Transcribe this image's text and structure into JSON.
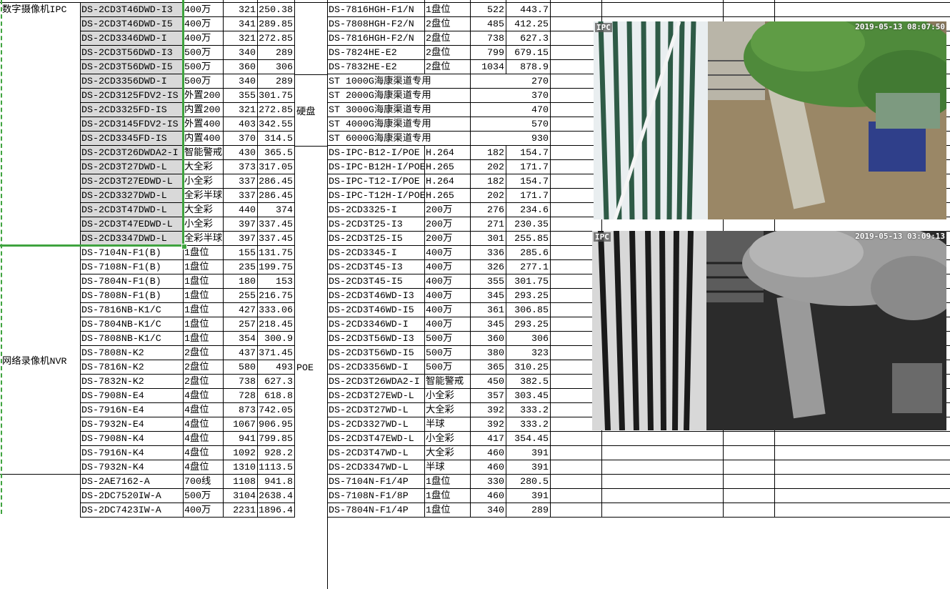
{
  "sheet": {
    "group_ipc": "数字摄像机IPC",
    "group_nvr": "网络录像机NVR",
    "group_hdd": "硬盘",
    "group_poe": "POE",
    "left_rows": [
      [
        "DS-2CD3T46DWD-I3",
        "400万",
        "321",
        "250.38"
      ],
      [
        "DS-2CD3T46DWD-I5",
        "400万",
        "341",
        "289.85"
      ],
      [
        "DS-2CD3346DWD-I",
        "400万",
        "321",
        "272.85"
      ],
      [
        "DS-2CD3T56DWD-I3",
        "500万",
        "340",
        "289"
      ],
      [
        "DS-2CD3T56DWD-I5",
        "500万",
        "360",
        "306"
      ],
      [
        "DS-2CD3356DWD-I",
        "500万",
        "340",
        "289"
      ],
      [
        "DS-2CD3125FDV2-IS",
        "外置200",
        "355",
        "301.75"
      ],
      [
        "DS-2CD3325FD-IS",
        "内置200",
        "321",
        "272.85"
      ],
      [
        "DS-2CD3145FDV2-IS",
        "外置400",
        "403",
        "342.55"
      ],
      [
        "DS-2CD3345FD-IS",
        "内置400",
        "370",
        "314.5"
      ],
      [
        "DS-2CD3T26DWDA2-I",
        "智能警戒",
        "430",
        "365.5"
      ],
      [
        "DS-2CD3T27DWD-L",
        "大全彩",
        "373",
        "317.05"
      ],
      [
        "DS-2CD3T27EDWD-L",
        "小全彩",
        "337",
        "286.45"
      ],
      [
        "DS-2CD3327DWD-L",
        "全彩半球",
        "337",
        "286.45"
      ],
      [
        "DS-2CD3T47DWD-L",
        "大全彩",
        "440",
        "374"
      ],
      [
        "DS-2CD3T47EDWD-L",
        "小全彩",
        "397",
        "337.45"
      ],
      [
        "DS-2CD3347DWD-L",
        "全彩半球",
        "397",
        "337.45"
      ],
      [
        "DS-7104N-F1(B)",
        "1盘位",
        "155",
        "131.75"
      ],
      [
        "DS-7108N-F1(B)",
        "1盘位",
        "235",
        "199.75"
      ],
      [
        "DS-7804N-F1(B)",
        "1盘位",
        "180",
        "153"
      ],
      [
        "DS-7808N-F1(B)",
        "1盘位",
        "255",
        "216.75"
      ],
      [
        "DS-7816NB-K1/C",
        "1盘位",
        "427",
        "333.06"
      ],
      [
        "DS-7804NB-K1/C",
        "1盘位",
        "257",
        "218.45"
      ],
      [
        "DS-7808NB-K1/C",
        "1盘位",
        "354",
        "300.9"
      ],
      [
        "DS-7808N-K2",
        "2盘位",
        "437",
        "371.45"
      ],
      [
        "DS-7816N-K2",
        "2盘位",
        "580",
        "493"
      ],
      [
        "DS-7832N-K2",
        "2盘位",
        "738",
        "627.3"
      ],
      [
        "DS-7908N-E4",
        "4盘位",
        "728",
        "618.8"
      ],
      [
        "DS-7916N-E4",
        "4盘位",
        "873",
        "742.05"
      ],
      [
        "DS-7932N-E4",
        "4盘位",
        "1067",
        "906.95"
      ],
      [
        "DS-7908N-K4",
        "4盘位",
        "941",
        "799.85"
      ],
      [
        "DS-7916N-K4",
        "4盘位",
        "1092",
        "928.2"
      ],
      [
        "DS-7932N-K4",
        "4盘位",
        "1310",
        "1113.5"
      ],
      [
        "DS-2AE7162-A",
        "700线",
        "1108",
        "941.8"
      ],
      [
        "DS-2DC7520IW-A",
        "500万",
        "3104",
        "2638.4"
      ],
      [
        "DS-2DC7423IW-A",
        "400万",
        "2231",
        "1896.4"
      ]
    ],
    "right_rows": [
      [
        "DS-7816HGH-F1/N",
        "1盘位",
        "522",
        "443.7"
      ],
      [
        "DS-7808HGH-F2/N",
        "2盘位",
        "485",
        "412.25"
      ],
      [
        "DS-7816HGH-F2/N",
        "2盘位",
        "738",
        "627.3"
      ],
      [
        "DS-7824HE-E2",
        "2盘位",
        "799",
        "679.15"
      ],
      [
        "DS-7832HE-E2",
        "2盘位",
        "1034",
        "878.9"
      ],
      [
        "ST 1000G海康渠道专用",
        "",
        "",
        "270"
      ],
      [
        "ST 2000G海康渠道专用",
        "",
        "",
        "370"
      ],
      [
        "ST 3000G海康渠道专用",
        "",
        "",
        "470"
      ],
      [
        "ST 4000G海康渠道专用",
        "",
        "",
        "570"
      ],
      [
        "ST 6000G海康渠道专用",
        "",
        "",
        "930"
      ],
      [
        "DS-IPC-B12-I/POE",
        "H.264",
        "182",
        "154.7"
      ],
      [
        "DS-IPC-B12H-I/POE",
        "H.265",
        "202",
        "171.7"
      ],
      [
        "DS-IPC-T12-I/POE",
        "H.264",
        "182",
        "154.7"
      ],
      [
        "DS-IPC-T12H-I/POE",
        "H.265",
        "202",
        "171.7"
      ],
      [
        "DS-2CD3325-I",
        "200万",
        "276",
        "234.6"
      ],
      [
        "DS-2CD3T25-I3",
        "200万",
        "271",
        "230.35"
      ],
      [
        "DS-2CD3T25-I5",
        "200万",
        "301",
        "255.85"
      ],
      [
        "DS-2CD3345-I",
        "400万",
        "336",
        "285.6"
      ],
      [
        "DS-2CD3T45-I3",
        "400万",
        "326",
        "277.1"
      ],
      [
        "DS-2CD3T45-I5",
        "400万",
        "355",
        "301.75"
      ],
      [
        "DS-2CD3T46WD-I3",
        "400万",
        "345",
        "293.25"
      ],
      [
        "DS-2CD3T46WD-I5",
        "400万",
        "361",
        "306.85"
      ],
      [
        "DS-2CD3346WD-I",
        "400万",
        "345",
        "293.25"
      ],
      [
        "DS-2CD3T56WD-I3",
        "500万",
        "360",
        "306"
      ],
      [
        "DS-2CD3T56WD-I5",
        "500万",
        "380",
        "323"
      ],
      [
        "DS-2CD3356WD-I",
        "500万",
        "365",
        "310.25"
      ],
      [
        "DS-2CD3T26WDA2-I",
        "智能警戒",
        "450",
        "382.5"
      ],
      [
        "DS-2CD3T27EWD-L",
        "小全彩",
        "357",
        "303.45"
      ],
      [
        "DS-2CD3T27WD-L",
        "大全彩",
        "392",
        "333.2"
      ],
      [
        "DS-2CD3327WD-L",
        "半球",
        "392",
        "333.2"
      ],
      [
        "DS-2CD3T47EWD-L",
        "小全彩",
        "417",
        "354.45"
      ],
      [
        "DS-2CD3T47WD-L",
        "大全彩",
        "460",
        "391"
      ],
      [
        "DS-2CD3347WD-L",
        "半球",
        "460",
        "391"
      ],
      [
        "DS-7104N-F1/4P",
        "1盘位",
        "330",
        "280.5"
      ],
      [
        "DS-7108N-F1/8P",
        "1盘位",
        "460",
        "391"
      ],
      [
        "DS-7804N-F1/4P",
        "1盘位",
        "340",
        "289"
      ]
    ]
  },
  "photos": [
    {
      "tag": "IPC",
      "timestamp": "2019-05-13 08:07:50",
      "mode": "color"
    },
    {
      "tag": "IPC",
      "timestamp": "2019-05-13 03:09:13",
      "mode": "night-ir"
    }
  ],
  "colors": {
    "selection": "#3fa33f",
    "selected_fill": "#d9d9d9",
    "grid": "#000000"
  }
}
